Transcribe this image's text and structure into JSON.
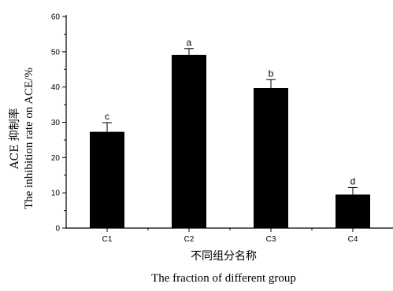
{
  "chart_data": {
    "type": "bar",
    "categories": [
      "C1",
      "C2",
      "C3",
      "C4"
    ],
    "values": [
      27.3,
      49.1,
      39.7,
      9.5
    ],
    "errors": [
      2.6,
      1.8,
      2.4,
      2.0
    ],
    "significance": [
      "c",
      "a",
      "b",
      "d"
    ],
    "xlabel": [
      "不同组分名称",
      "The fraction of different group"
    ],
    "ylabel": [
      "ACE 抑制率",
      "The inhibition rate on ACE/%"
    ],
    "ylim": [
      0,
      60
    ],
    "yticks": [
      0,
      10,
      20,
      30,
      40,
      50,
      60
    ],
    "bar_color": "#000000",
    "grid": false
  }
}
